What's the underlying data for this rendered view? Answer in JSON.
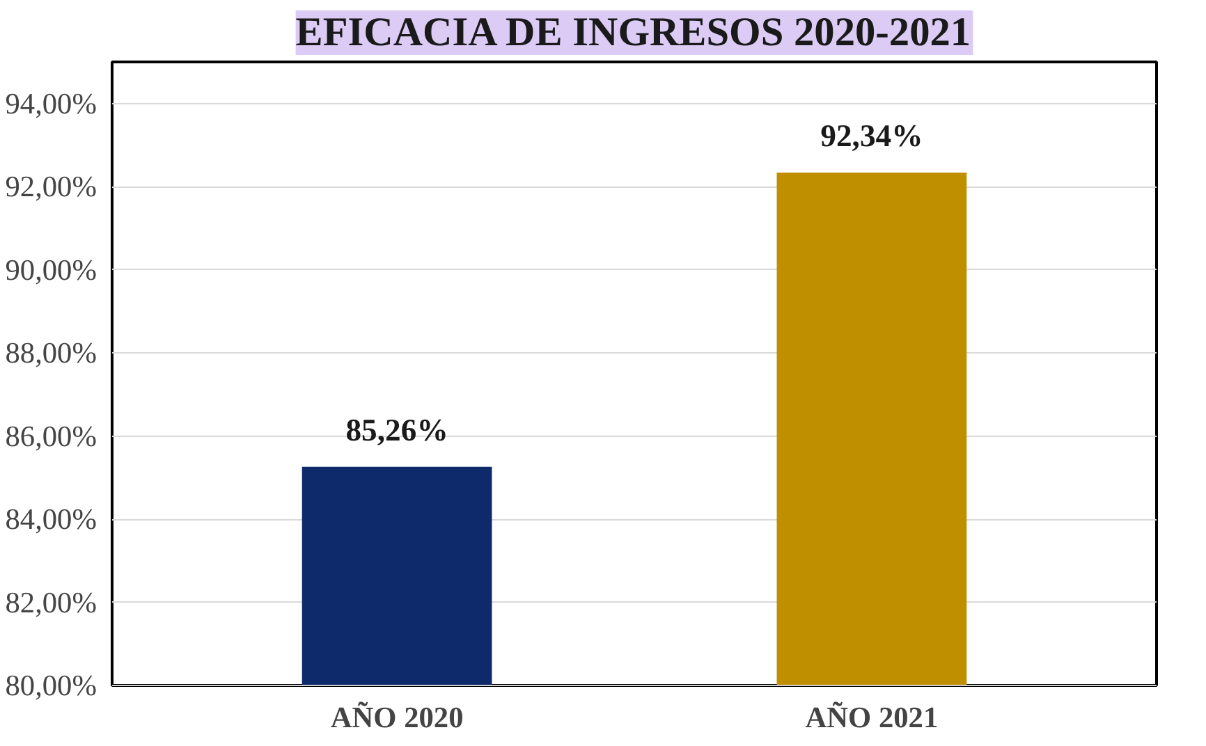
{
  "chart_data": {
    "type": "bar",
    "title": "EFICACIA DE INGRESOS 2020-2021",
    "categories": [
      "AÑO 2020",
      "AÑO 2021"
    ],
    "values": [
      85.26,
      92.34
    ],
    "colors": [
      "#0f2a6b",
      "#bf8f00"
    ],
    "value_labels": [
      "85,26%",
      "92,34%"
    ],
    "ylim": [
      80,
      95
    ],
    "yticks": [
      {
        "value": 80,
        "label": "80,00%"
      },
      {
        "value": 82,
        "label": "82,00%"
      },
      {
        "value": 84,
        "label": "84,00%"
      },
      {
        "value": 86,
        "label": "86,00%"
      },
      {
        "value": 88,
        "label": "88,00%"
      },
      {
        "value": 90,
        "label": "90,00%"
      },
      {
        "value": 92,
        "label": "92,00%"
      },
      {
        "value": 94,
        "label": "94,00%"
      }
    ],
    "grid": "y"
  }
}
